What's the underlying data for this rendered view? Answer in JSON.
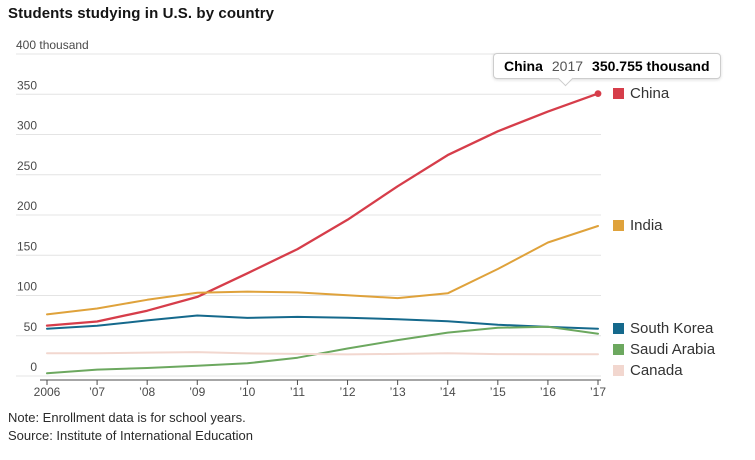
{
  "title": "Students studying in U.S. by country",
  "note": "Note: Enrollment data is for school years.",
  "source": "Source: Institute of International Education",
  "tooltip": {
    "series": "China",
    "year": "2017",
    "value": "350.755 thousand"
  },
  "colors": {
    "china": "#d63d4a",
    "india": "#dfa23b",
    "south_korea": "#15698c",
    "saudi_arabia": "#6ca85f",
    "canada": "#f2d7cf",
    "gridline": "#e4e4e4",
    "axis": "#4d4d4d"
  },
  "chart_data": {
    "type": "line",
    "title": "Students studying in U.S. by country",
    "unit": "thousand",
    "grid": true,
    "legend_position": "right-at-line-ends",
    "ylim": [
      0,
      400
    ],
    "y_ticks": [
      {
        "value": 400,
        "label": "400 thousand"
      },
      {
        "value": 350,
        "label": "350"
      },
      {
        "value": 300,
        "label": "300"
      },
      {
        "value": 250,
        "label": "250"
      },
      {
        "value": 200,
        "label": "200"
      },
      {
        "value": 150,
        "label": "150"
      },
      {
        "value": 100,
        "label": "100"
      },
      {
        "value": 50,
        "label": "50"
      },
      {
        "value": 0,
        "label": "0"
      }
    ],
    "x_labels": [
      "2006",
      "’07",
      "’08",
      "’09",
      "’10",
      "’11",
      "’12",
      "’13",
      "’14",
      "’15",
      "’16",
      "’17"
    ],
    "series": [
      {
        "name": "China",
        "color": "#d63d4a",
        "stroke_width": 2.3,
        "end_dot": true,
        "values": [
          62.6,
          67.7,
          81.1,
          98.2,
          127.6,
          157.6,
          194.0,
          235.6,
          274.4,
          304.0,
          328.5,
          350.755
        ]
      },
      {
        "name": "India",
        "color": "#dfa23b",
        "stroke_width": 2,
        "end_dot": false,
        "values": [
          76.5,
          83.8,
          94.6,
          103.3,
          104.9,
          103.9,
          100.3,
          96.8,
          102.7,
          132.9,
          165.9,
          186.3
        ]
      },
      {
        "name": "South Korea",
        "color": "#15698c",
        "stroke_width": 2,
        "end_dot": false,
        "values": [
          58.8,
          62.4,
          69.1,
          75.1,
          72.2,
          73.4,
          72.3,
          70.6,
          68.0,
          63.7,
          61.0,
          58.7
        ]
      },
      {
        "name": "Saudi Arabia",
        "color": "#6ca85f",
        "stroke_width": 2,
        "end_dot": false,
        "values": [
          3.4,
          7.9,
          9.9,
          12.7,
          15.8,
          22.7,
          34.1,
          44.6,
          53.9,
          59.9,
          61.3,
          52.6
        ]
      },
      {
        "name": "Canada",
        "color": "#f2d7cf",
        "stroke_width": 2,
        "end_dot": false,
        "values": [
          28.2,
          28.3,
          29.1,
          29.7,
          28.1,
          27.5,
          26.8,
          27.4,
          28.3,
          27.2,
          27.0,
          27.1
        ]
      }
    ],
    "annotation": {
      "series": "China",
      "x_label": "2017",
      "value": 350.755,
      "text": "China 2017 350.755 thousand"
    }
  }
}
